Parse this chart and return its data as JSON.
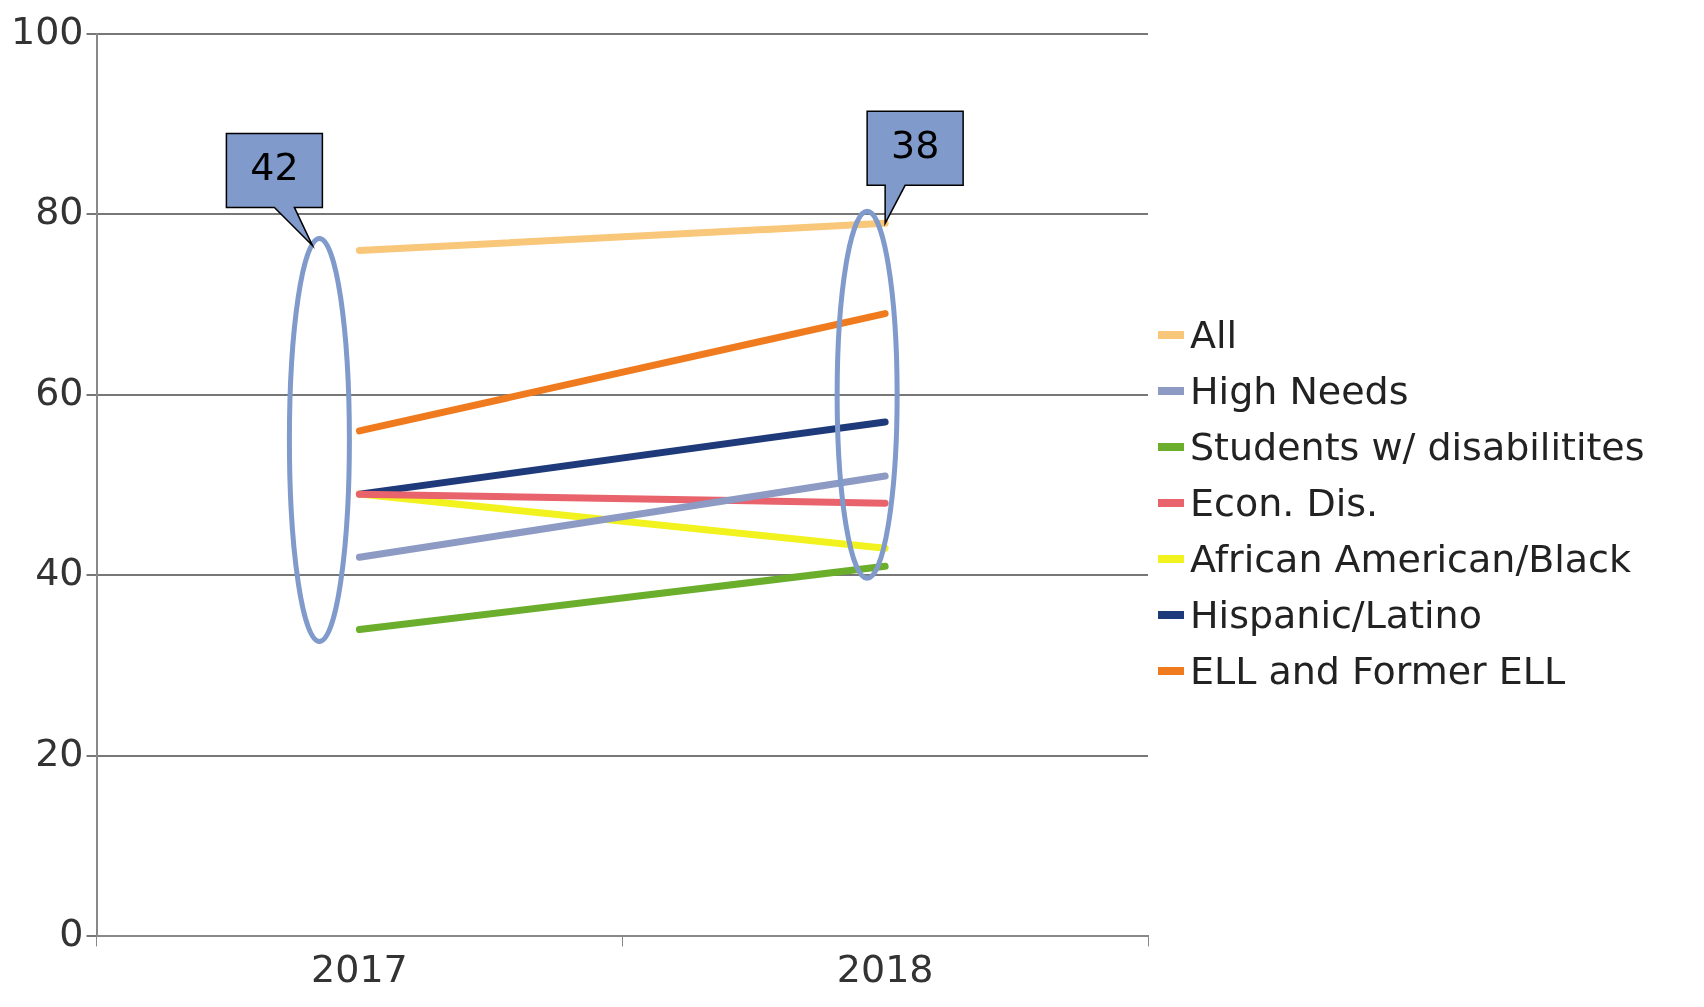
{
  "chart_data": {
    "type": "line",
    "categories": [
      "2017",
      "2018"
    ],
    "series": [
      {
        "name": "All",
        "color": "#f9c77a",
        "values": [
          76,
          79
        ]
      },
      {
        "name": "High Needs",
        "color": "#8d9bc4",
        "values": [
          42,
          51
        ]
      },
      {
        "name": "Students w/ disabilitites",
        "color": "#6aae2c",
        "values": [
          34,
          41
        ]
      },
      {
        "name": "Econ. Dis.",
        "color": "#e8636b",
        "values": [
          49,
          48
        ]
      },
      {
        "name": "African American/Black",
        "color": "#f2f21e",
        "values": [
          49,
          43
        ]
      },
      {
        "name": "Hispanic/Latino",
        "color": "#1f3a7a",
        "values": [
          49,
          57
        ]
      },
      {
        "name": "ELL and Former ELL",
        "color": "#f07b1e",
        "values": [
          56,
          69
        ]
      }
    ],
    "ylim": [
      0,
      100
    ],
    "yticks": [
      0,
      20,
      40,
      60,
      80,
      100
    ],
    "grid": "y",
    "legend": "right",
    "marker": "none",
    "line_style": "solid",
    "annotations": [
      "42",
      "38"
    ]
  }
}
